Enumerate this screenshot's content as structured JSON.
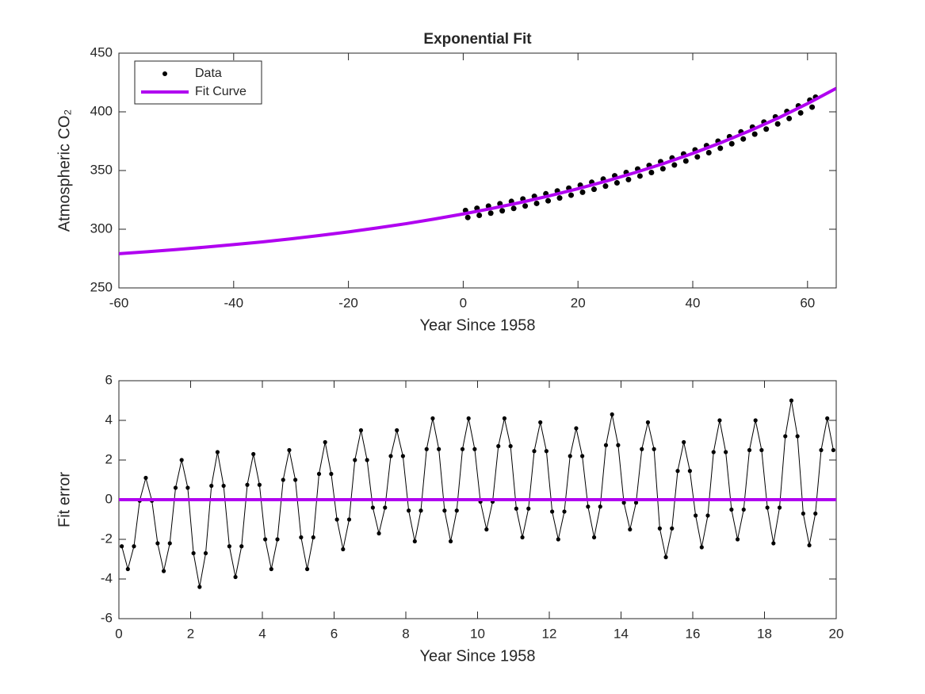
{
  "chart_data": [
    {
      "type": "line",
      "title": "Exponential Fit",
      "x_label": "Year Since 1958",
      "y_label": "Atmospheric CO₂",
      "xlim": [
        -60,
        65
      ],
      "xticks": [
        -60,
        -40,
        -20,
        0,
        20,
        40,
        60
      ],
      "ylim": [
        250,
        450
      ],
      "yticks": [
        250,
        300,
        350,
        400,
        450
      ],
      "legend": "upper left",
      "series": [
        {
          "name": "Data",
          "color": "#000000",
          "mode": "markers",
          "x": [
            0.4,
            0.8,
            2.4,
            2.8,
            4.4,
            4.8,
            6.4,
            6.8,
            8.4,
            8.8,
            10.4,
            10.8,
            12.4,
            12.8,
            14.4,
            14.8,
            16.4,
            16.8,
            18.4,
            18.8,
            20.4,
            20.8,
            22.4,
            22.8,
            24.4,
            24.8,
            26.4,
            26.8,
            28.4,
            28.8,
            30.4,
            30.8,
            32.4,
            32.8,
            34.4,
            34.8,
            36.4,
            36.8,
            38.4,
            38.8,
            40.4,
            40.8,
            42.4,
            42.8,
            44.4,
            44.8,
            46.4,
            46.8,
            48.4,
            48.8,
            50.4,
            50.8,
            52.4,
            52.8,
            54.4,
            54.8,
            56.4,
            56.8,
            58.4,
            58.8,
            60.4,
            60.8,
            61.4
          ],
          "values": [
            316,
            310,
            317.8,
            311.8,
            319.7,
            313.7,
            321.7,
            315.7,
            323.7,
            317.7,
            325.8,
            319.8,
            328.0,
            322.0,
            330.2,
            324.2,
            332.6,
            326.6,
            335.0,
            329.0,
            337.5,
            331.5,
            340.0,
            334.0,
            342.7,
            336.7,
            345.5,
            339.5,
            348.3,
            342.3,
            351.3,
            345.3,
            354.3,
            348.3,
            357.5,
            351.5,
            360.7,
            354.7,
            364.1,
            358.1,
            367.6,
            361.6,
            371.2,
            365.2,
            375.0,
            369.0,
            378.8,
            372.8,
            382.9,
            376.9,
            387.0,
            381.0,
            391.3,
            385.3,
            395.7,
            389.7,
            400.3,
            394.3,
            405.1,
            399.1,
            410.0,
            404.0,
            412.5
          ]
        },
        {
          "name": "Fit Curve",
          "color": "#b000f0",
          "mode": "line",
          "x": [
            -60,
            -55,
            -50,
            -45,
            -40,
            -35,
            -30,
            -25,
            -20,
            -15,
            -10,
            -5,
            0,
            5,
            10,
            15,
            20,
            25,
            30,
            35,
            40,
            45,
            50,
            55,
            60,
            65
          ],
          "values": [
            279.1,
            280.8,
            282.7,
            284.7,
            286.9,
            289.2,
            291.8,
            294.7,
            297.7,
            301.1,
            304.7,
            308.7,
            313,
            317.7,
            322.8,
            328.4,
            334.5,
            341.1,
            348.3,
            356.1,
            364.6,
            373.9,
            384.0,
            395.0,
            407.0,
            420.0
          ]
        }
      ]
    },
    {
      "type": "line",
      "x_label": "Year Since 1958",
      "y_label": "Fit error",
      "xlim": [
        0,
        20
      ],
      "xticks": [
        0,
        2,
        4,
        6,
        8,
        10,
        12,
        14,
        16,
        18,
        20
      ],
      "ylim": [
        -6,
        6
      ],
      "yticks": [
        -6,
        -4,
        -2,
        0,
        2,
        4,
        6
      ],
      "series": [
        {
          "color": "#000000",
          "mode": "line+markers",
          "x": [
            0.08,
            0.25,
            0.42,
            0.58,
            0.75,
            0.92,
            1.08,
            1.25,
            1.42,
            1.58,
            1.75,
            1.92,
            2.08,
            2.25,
            2.42,
            2.58,
            2.75,
            2.92,
            3.08,
            3.25,
            3.42,
            3.58,
            3.75,
            3.92,
            4.08,
            4.25,
            4.42,
            4.58,
            4.75,
            4.92,
            5.08,
            5.25,
            5.42,
            5.58,
            5.75,
            5.92,
            6.08,
            6.25,
            6.42,
            6.58,
            6.75,
            6.92,
            7.08,
            7.25,
            7.42,
            7.58,
            7.75,
            7.92,
            8.08,
            8.25,
            8.42,
            8.58,
            8.75,
            8.92,
            9.08,
            9.25,
            9.42,
            9.58,
            9.75,
            9.92,
            10.08,
            10.25,
            10.42,
            10.58,
            10.75,
            10.92,
            11.08,
            11.25,
            11.42,
            11.58,
            11.75,
            11.92,
            12.08,
            12.25,
            12.42,
            12.58,
            12.75,
            12.92,
            13.08,
            13.25,
            13.42,
            13.58,
            13.75,
            13.92,
            14.08,
            14.25,
            14.42,
            14.58,
            14.75,
            14.92,
            15.08,
            15.25,
            15.42,
            15.58,
            15.75,
            15.92,
            16.08,
            16.25,
            16.42,
            16.58,
            16.75,
            16.92,
            17.08,
            17.25,
            17.42,
            17.58,
            17.75,
            17.92,
            18.08,
            18.25,
            18.42,
            18.58,
            18.75,
            18.92,
            19.08,
            19.25,
            19.42,
            19.58,
            19.75,
            19.92
          ],
          "values": [
            -2.35,
            -3.5,
            -2.35,
            -0.05,
            1.1,
            -0.05,
            -2.2,
            -3.6,
            -2.2,
            0.6,
            2.0,
            0.6,
            -2.7,
            -4.4,
            -2.7,
            0.7,
            2.4,
            0.7,
            -2.35,
            -3.9,
            -2.35,
            0.75,
            2.3,
            0.75,
            -2.0,
            -3.5,
            -2.0,
            1.0,
            2.5,
            1.0,
            -1.9,
            -3.5,
            -1.9,
            1.3,
            2.9,
            1.3,
            -1.0,
            -2.5,
            -1.0,
            2.0,
            3.5,
            2.0,
            -0.4,
            -1.7,
            -0.4,
            2.2,
            3.5,
            2.2,
            -0.55,
            -2.1,
            -0.55,
            2.55,
            4.1,
            2.55,
            -0.55,
            -2.1,
            -0.55,
            2.55,
            4.1,
            2.55,
            -0.1,
            -1.5,
            -0.1,
            2.7,
            4.1,
            2.7,
            -0.45,
            -1.9,
            -0.45,
            2.45,
            3.9,
            2.45,
            -0.6,
            -2.0,
            -0.6,
            2.2,
            3.6,
            2.2,
            -0.35,
            -1.9,
            -0.35,
            2.75,
            4.3,
            2.75,
            -0.15,
            -1.5,
            -0.15,
            2.55,
            3.9,
            2.55,
            -1.45,
            -2.9,
            -1.45,
            1.45,
            2.9,
            1.45,
            -0.8,
            -2.4,
            -0.8,
            2.4,
            4.0,
            2.4,
            -0.5,
            -2.0,
            -0.5,
            2.5,
            4.0,
            2.5,
            -0.4,
            -2.2,
            -0.4,
            3.2,
            5.0,
            3.2,
            -0.7,
            -2.3,
            -0.7,
            2.5,
            4.1,
            2.5
          ]
        },
        {
          "color": "#b000f0",
          "mode": "line",
          "x": [
            0,
            20
          ],
          "values": [
            0,
            0
          ]
        }
      ]
    }
  ]
}
